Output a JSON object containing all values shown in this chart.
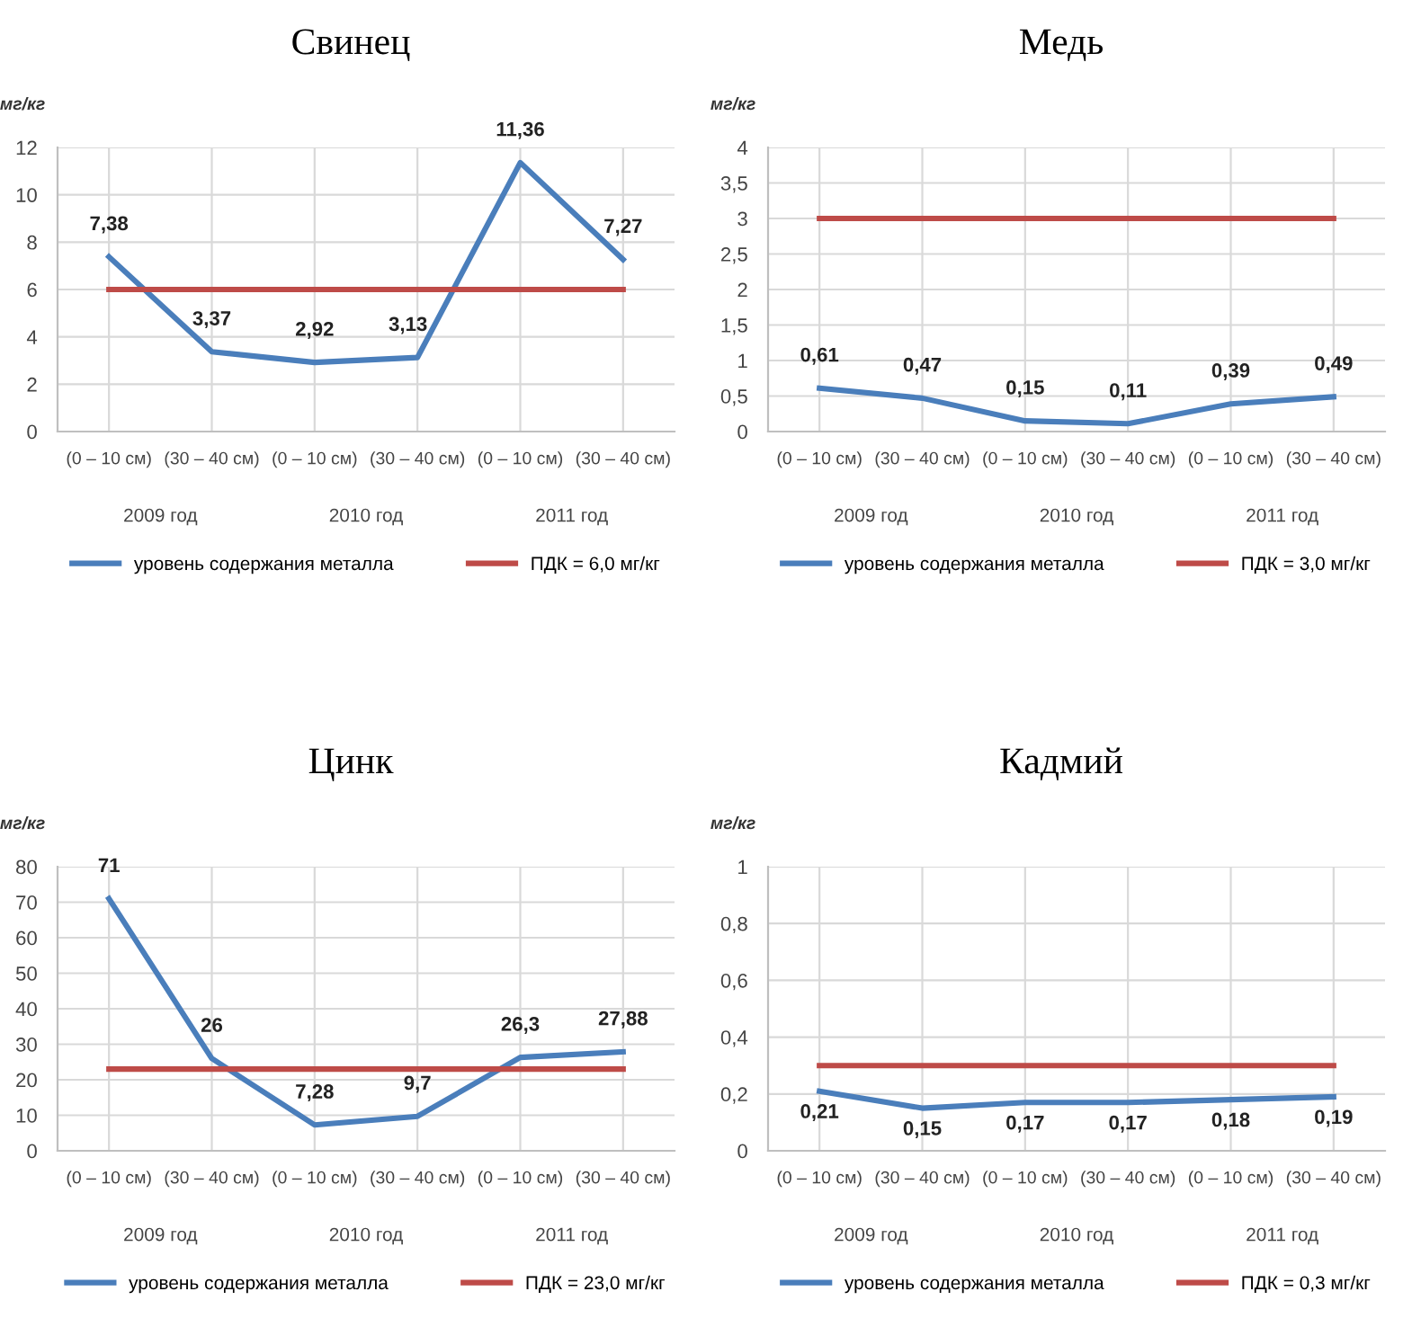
{
  "chart_data": [
    {
      "type": "line",
      "title": "Свинец",
      "ylabel": "мг/кг",
      "categories": [
        "(0 – 10 см)",
        "(30 – 40 см)",
        "(0 – 10 см)",
        "(30 – 40 см)",
        "(0 – 10 см)",
        "(30 – 40 см)"
      ],
      "annotations": [
        "2009 год",
        "2010 год",
        "2011 год"
      ],
      "series": [
        {
          "name": "уровень содержания металла",
          "color": "#4a7ebb",
          "values": [
            7.38,
            3.37,
            2.92,
            3.13,
            11.36,
            7.27
          ],
          "value_labels": [
            "7,38",
            "3,37",
            "2,92",
            "3,13",
            "11,36",
            "7,27"
          ]
        },
        {
          "name": "ПДК = 6,0 мг/кг",
          "color": "#be4b48",
          "values": [
            6,
            6,
            6,
            6,
            6,
            6
          ]
        }
      ],
      "ylim": [
        0,
        12
      ],
      "yticks": [
        0,
        2,
        4,
        6,
        8,
        10,
        12
      ],
      "grid": true,
      "legend": "bottom",
      "marker": "none",
      "line_style": "solid"
    },
    {
      "type": "line",
      "title": "Медь",
      "ylabel": "мг/кг",
      "categories": [
        "(0 – 10 см)",
        "(30 – 40 см)",
        "(0 – 10 см)",
        "(30 – 40 см)",
        "(0 – 10 см)",
        "(30 – 40 см)"
      ],
      "annotations": [
        "2009 год",
        "2010 год",
        "2011 год"
      ],
      "series": [
        {
          "name": "уровень содержания металла",
          "color": "#4a7ebb",
          "values": [
            0.61,
            0.47,
            0.15,
            0.11,
            0.39,
            0.49
          ],
          "value_labels": [
            "0,61",
            "0,47",
            "0,15",
            "0,11",
            "0,39",
            "0,49"
          ]
        },
        {
          "name": "ПДК = 3,0 мг/кг",
          "color": "#be4b48",
          "values": [
            3,
            3,
            3,
            3,
            3,
            3
          ]
        }
      ],
      "ylim": [
        0,
        4
      ],
      "yticks": [
        0,
        {
          "value": 0.5,
          "label": "0,5"
        },
        1,
        {
          "value": 1.5,
          "label": "1,5"
        },
        2,
        {
          "value": 2.5,
          "label": "2,5"
        },
        3,
        {
          "value": 3.5,
          "label": "3,5"
        },
        4
      ],
      "grid": true,
      "legend": "bottom",
      "marker": "none",
      "line_style": "solid"
    },
    {
      "type": "line",
      "title": "Цинк",
      "ylabel": "мг/кг",
      "categories": [
        "(0 – 10 см)",
        "(30 – 40 см)",
        "(0 – 10 см)",
        "(30 – 40 см)",
        "(0 – 10 см)",
        "(30 – 40 см)"
      ],
      "annotations": [
        "2009 год",
        "2010 год",
        "2011 год"
      ],
      "series": [
        {
          "name": "уровень содержания металла",
          "color": "#4a7ebb",
          "values": [
            71,
            26,
            7.28,
            9.7,
            26.3,
            27.88
          ],
          "value_labels": [
            "71",
            "26",
            "7,28",
            "9,7",
            "26,3",
            "27,88"
          ]
        },
        {
          "name": "ПДК = 23,0 мг/кг",
          "color": "#be4b48",
          "values": [
            23,
            23,
            23,
            23,
            23,
            23
          ]
        }
      ],
      "ylim": [
        0,
        80
      ],
      "yticks": [
        0,
        10,
        20,
        30,
        40,
        50,
        60,
        70,
        80
      ],
      "grid": true,
      "legend": "bottom",
      "marker": "none",
      "line_style": "solid"
    },
    {
      "type": "line",
      "title": "Кадмий",
      "ylabel": "мг/кг",
      "categories": [
        "(0 – 10 см)",
        "(30 – 40 см)",
        "(0 – 10 см)",
        "(30 – 40 см)",
        "(0 – 10 см)",
        "(30 – 40 см)"
      ],
      "annotations": [
        "2009 год",
        "2010 год",
        "2011 год"
      ],
      "series": [
        {
          "name": "уровень содержания металла",
          "color": "#4a7ebb",
          "values": [
            0.21,
            0.15,
            0.17,
            0.17,
            0.18,
            0.19
          ],
          "value_labels": [
            "0,21",
            "0,15",
            "0,17",
            "0,17",
            "0,18",
            "0,19"
          ]
        },
        {
          "name": "ПДК = 0,3 мг/кг",
          "color": "#be4b48",
          "values": [
            0.3,
            0.3,
            0.3,
            0.3,
            0.3,
            0.3
          ]
        }
      ],
      "ylim": [
        0,
        1
      ],
      "yticks": [
        0,
        {
          "value": 0.2,
          "label": "0,2"
        },
        {
          "value": 0.4,
          "label": "0,4"
        },
        {
          "value": 0.6,
          "label": "0,6"
        },
        {
          "value": 0.8,
          "label": "0,8"
        },
        1
      ],
      "grid": true,
      "legend": "bottom",
      "marker": "none",
      "line_style": "solid"
    }
  ]
}
